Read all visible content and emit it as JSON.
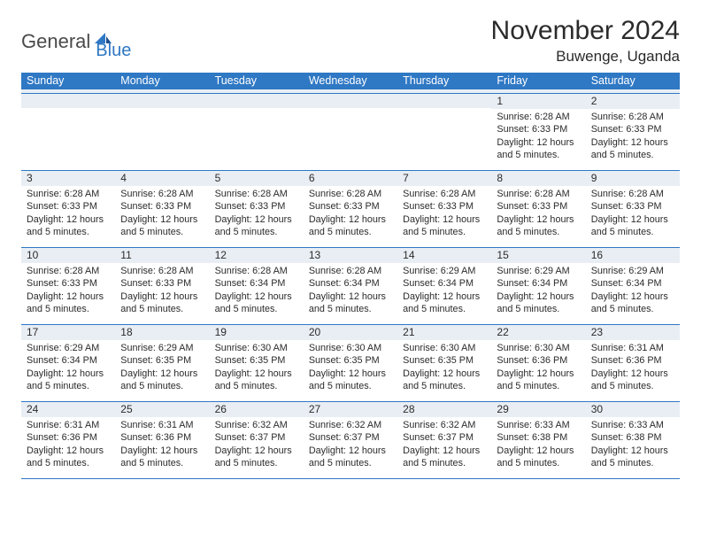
{
  "brand": {
    "word1": "General",
    "word2": "Blue"
  },
  "title": "November 2024",
  "location": "Buwenge, Uganda",
  "weekdays": [
    "Sunday",
    "Monday",
    "Tuesday",
    "Wednesday",
    "Thursday",
    "Friday",
    "Saturday"
  ],
  "colors": {
    "header_bar": "#2f78c4",
    "header_text": "#ffffff",
    "daynum_bg": "#e9eef4",
    "rule": "#2f78c4",
    "text": "#2b2b2b"
  },
  "weeks": [
    [
      {
        "n": "",
        "empty": true
      },
      {
        "n": "",
        "empty": true
      },
      {
        "n": "",
        "empty": true
      },
      {
        "n": "",
        "empty": true
      },
      {
        "n": "",
        "empty": true
      },
      {
        "n": "1",
        "sr": "Sunrise: 6:28 AM",
        "ss": "Sunset: 6:33 PM",
        "dl1": "Daylight: 12 hours",
        "dl2": "and 5 minutes."
      },
      {
        "n": "2",
        "sr": "Sunrise: 6:28 AM",
        "ss": "Sunset: 6:33 PM",
        "dl1": "Daylight: 12 hours",
        "dl2": "and 5 minutes."
      }
    ],
    [
      {
        "n": "3",
        "sr": "Sunrise: 6:28 AM",
        "ss": "Sunset: 6:33 PM",
        "dl1": "Daylight: 12 hours",
        "dl2": "and 5 minutes."
      },
      {
        "n": "4",
        "sr": "Sunrise: 6:28 AM",
        "ss": "Sunset: 6:33 PM",
        "dl1": "Daylight: 12 hours",
        "dl2": "and 5 minutes."
      },
      {
        "n": "5",
        "sr": "Sunrise: 6:28 AM",
        "ss": "Sunset: 6:33 PM",
        "dl1": "Daylight: 12 hours",
        "dl2": "and 5 minutes."
      },
      {
        "n": "6",
        "sr": "Sunrise: 6:28 AM",
        "ss": "Sunset: 6:33 PM",
        "dl1": "Daylight: 12 hours",
        "dl2": "and 5 minutes."
      },
      {
        "n": "7",
        "sr": "Sunrise: 6:28 AM",
        "ss": "Sunset: 6:33 PM",
        "dl1": "Daylight: 12 hours",
        "dl2": "and 5 minutes."
      },
      {
        "n": "8",
        "sr": "Sunrise: 6:28 AM",
        "ss": "Sunset: 6:33 PM",
        "dl1": "Daylight: 12 hours",
        "dl2": "and 5 minutes."
      },
      {
        "n": "9",
        "sr": "Sunrise: 6:28 AM",
        "ss": "Sunset: 6:33 PM",
        "dl1": "Daylight: 12 hours",
        "dl2": "and 5 minutes."
      }
    ],
    [
      {
        "n": "10",
        "sr": "Sunrise: 6:28 AM",
        "ss": "Sunset: 6:33 PM",
        "dl1": "Daylight: 12 hours",
        "dl2": "and 5 minutes."
      },
      {
        "n": "11",
        "sr": "Sunrise: 6:28 AM",
        "ss": "Sunset: 6:33 PM",
        "dl1": "Daylight: 12 hours",
        "dl2": "and 5 minutes."
      },
      {
        "n": "12",
        "sr": "Sunrise: 6:28 AM",
        "ss": "Sunset: 6:34 PM",
        "dl1": "Daylight: 12 hours",
        "dl2": "and 5 minutes."
      },
      {
        "n": "13",
        "sr": "Sunrise: 6:28 AM",
        "ss": "Sunset: 6:34 PM",
        "dl1": "Daylight: 12 hours",
        "dl2": "and 5 minutes."
      },
      {
        "n": "14",
        "sr": "Sunrise: 6:29 AM",
        "ss": "Sunset: 6:34 PM",
        "dl1": "Daylight: 12 hours",
        "dl2": "and 5 minutes."
      },
      {
        "n": "15",
        "sr": "Sunrise: 6:29 AM",
        "ss": "Sunset: 6:34 PM",
        "dl1": "Daylight: 12 hours",
        "dl2": "and 5 minutes."
      },
      {
        "n": "16",
        "sr": "Sunrise: 6:29 AM",
        "ss": "Sunset: 6:34 PM",
        "dl1": "Daylight: 12 hours",
        "dl2": "and 5 minutes."
      }
    ],
    [
      {
        "n": "17",
        "sr": "Sunrise: 6:29 AM",
        "ss": "Sunset: 6:34 PM",
        "dl1": "Daylight: 12 hours",
        "dl2": "and 5 minutes."
      },
      {
        "n": "18",
        "sr": "Sunrise: 6:29 AM",
        "ss": "Sunset: 6:35 PM",
        "dl1": "Daylight: 12 hours",
        "dl2": "and 5 minutes."
      },
      {
        "n": "19",
        "sr": "Sunrise: 6:30 AM",
        "ss": "Sunset: 6:35 PM",
        "dl1": "Daylight: 12 hours",
        "dl2": "and 5 minutes."
      },
      {
        "n": "20",
        "sr": "Sunrise: 6:30 AM",
        "ss": "Sunset: 6:35 PM",
        "dl1": "Daylight: 12 hours",
        "dl2": "and 5 minutes."
      },
      {
        "n": "21",
        "sr": "Sunrise: 6:30 AM",
        "ss": "Sunset: 6:35 PM",
        "dl1": "Daylight: 12 hours",
        "dl2": "and 5 minutes."
      },
      {
        "n": "22",
        "sr": "Sunrise: 6:30 AM",
        "ss": "Sunset: 6:36 PM",
        "dl1": "Daylight: 12 hours",
        "dl2": "and 5 minutes."
      },
      {
        "n": "23",
        "sr": "Sunrise: 6:31 AM",
        "ss": "Sunset: 6:36 PM",
        "dl1": "Daylight: 12 hours",
        "dl2": "and 5 minutes."
      }
    ],
    [
      {
        "n": "24",
        "sr": "Sunrise: 6:31 AM",
        "ss": "Sunset: 6:36 PM",
        "dl1": "Daylight: 12 hours",
        "dl2": "and 5 minutes."
      },
      {
        "n": "25",
        "sr": "Sunrise: 6:31 AM",
        "ss": "Sunset: 6:36 PM",
        "dl1": "Daylight: 12 hours",
        "dl2": "and 5 minutes."
      },
      {
        "n": "26",
        "sr": "Sunrise: 6:32 AM",
        "ss": "Sunset: 6:37 PM",
        "dl1": "Daylight: 12 hours",
        "dl2": "and 5 minutes."
      },
      {
        "n": "27",
        "sr": "Sunrise: 6:32 AM",
        "ss": "Sunset: 6:37 PM",
        "dl1": "Daylight: 12 hours",
        "dl2": "and 5 minutes."
      },
      {
        "n": "28",
        "sr": "Sunrise: 6:32 AM",
        "ss": "Sunset: 6:37 PM",
        "dl1": "Daylight: 12 hours",
        "dl2": "and 5 minutes."
      },
      {
        "n": "29",
        "sr": "Sunrise: 6:33 AM",
        "ss": "Sunset: 6:38 PM",
        "dl1": "Daylight: 12 hours",
        "dl2": "and 5 minutes."
      },
      {
        "n": "30",
        "sr": "Sunrise: 6:33 AM",
        "ss": "Sunset: 6:38 PM",
        "dl1": "Daylight: 12 hours",
        "dl2": "and 5 minutes."
      }
    ]
  ]
}
